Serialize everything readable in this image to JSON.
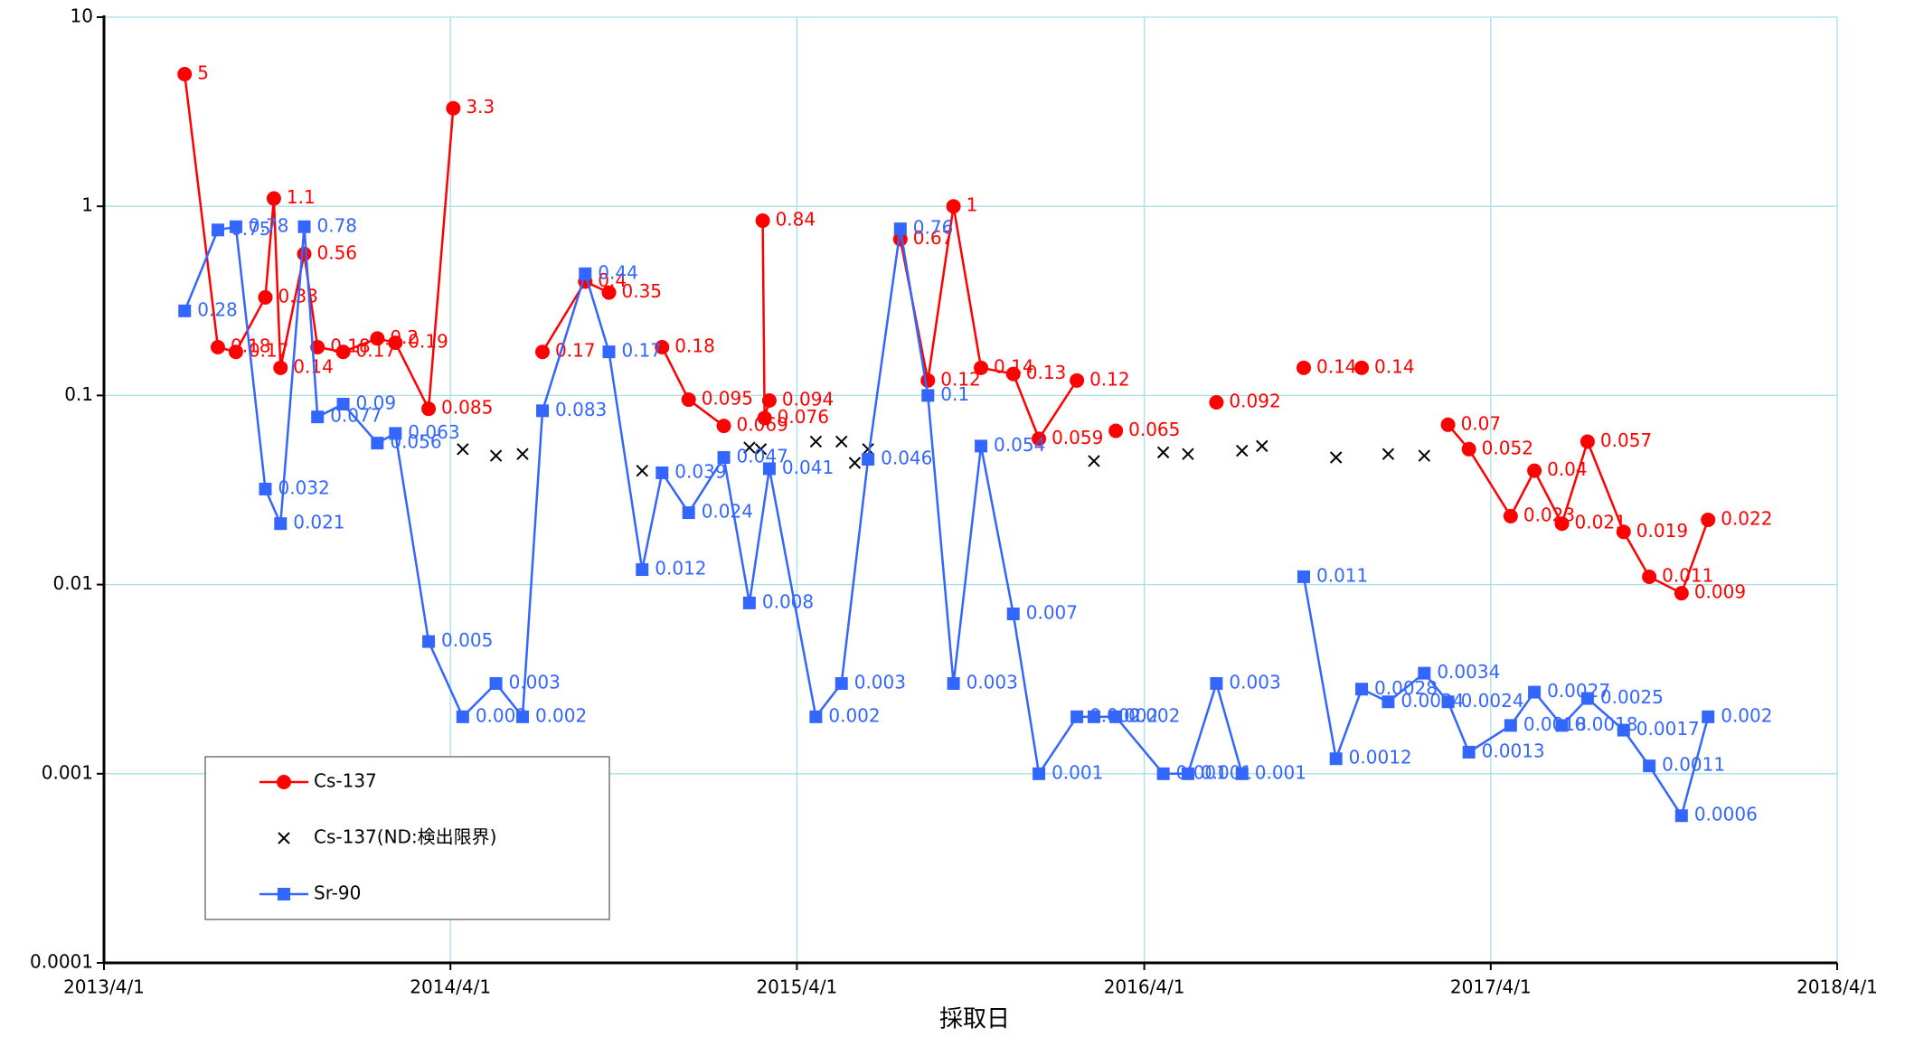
{
  "chart_data": {
    "type": "line",
    "x_label": "採取日",
    "xlim": [
      "2013/4/1",
      "2018/4/1"
    ],
    "xticks": [
      "2013/4/1",
      "2014/4/1",
      "2015/4/1",
      "2016/4/1",
      "2017/4/1",
      "2018/4/1"
    ],
    "ylim": [
      0.0001,
      10
    ],
    "yticks": [
      0.0001,
      0.001,
      0.01,
      0.1,
      1,
      10
    ],
    "log_y": true,
    "grid": true,
    "legend": "lower left",
    "series": [
      {
        "name": "Cs-137",
        "color": "#ff0000",
        "marker": "circle",
        "line": true,
        "x": [
          "2013/6/25",
          "2013/7/30",
          "2013/8/18",
          "2013/9/18",
          "2013/9/27",
          "2013/10/4",
          "2013/10/29",
          "2013/11/12",
          "2013/12/9",
          "2014/1/14",
          "2014/2/2",
          "2014/3/9",
          "2014/4/4",
          "2014/4/14",
          "2014/7/7",
          "2014/8/21",
          "2014/9/15",
          "2014/10/20",
          "2014/11/10",
          "2014/12/8",
          "2015/1/14",
          "2015/2/10",
          "2015/2/24",
          "2015/2/26",
          "2015/3/3",
          "2015/4/21",
          "2015/7/19",
          "2015/8/17",
          "2015/9/13",
          "2015/10/12",
          "2015/11/15",
          "2015/12/12",
          "2016/1/21",
          "2016/2/8",
          "2016/3/2",
          "2016/4/21",
          "2016/6/16",
          "2016/7/13",
          "2016/9/16",
          "2016/10/20",
          "2016/11/16",
          "2016/12/14",
          "2017/2/15",
          "2017/3/9",
          "2017/4/22",
          "2017/5/17",
          "2017/6/15",
          "2017/7/12",
          "2017/8/19",
          "2017/9/15",
          "2017/10/19",
          "2017/11/16"
        ],
        "values": [
          5,
          0.18,
          0.17,
          0.33,
          1.1,
          0.14,
          0.56,
          0.18,
          0.17,
          0.2,
          0.19,
          0.085,
          3.3,
          null,
          0.17,
          0.4,
          0.35,
          null,
          0.18,
          0.095,
          0.069,
          null,
          0.84,
          0.076,
          0.094,
          null,
          0.67,
          0.12,
          1,
          0.14,
          0.13,
          0.059,
          0.12,
          null,
          0.065,
          null,
          0.092,
          null,
          0.14,
          null,
          0.14,
          null,
          0.07,
          0.052,
          0.023,
          0.04,
          0.021,
          0.057,
          0.019,
          0.011,
          0.009,
          0.022
        ]
      },
      {
        "name": "Cs-137(ND:検出限界)",
        "color": "#000000",
        "marker": "x",
        "line": false,
        "x": [
          "2014/4/14",
          "2014/5/19",
          "2014/6/16",
          "2014/10/20",
          "2015/2/10",
          "2015/2/22",
          "2015/4/21",
          "2015/5/18",
          "2015/6/1",
          "2015/6/15",
          "2016/2/8",
          "2016/4/21",
          "2016/5/17",
          "2016/7/13",
          "2016/8/3",
          "2016/10/20",
          "2016/12/14",
          "2017/1/21"
        ],
        "values": [
          0.052,
          0.048,
          0.049,
          0.04,
          0.053,
          0.052,
          0.057,
          0.057,
          0.044,
          0.052,
          0.045,
          0.05,
          0.049,
          0.051,
          0.054,
          0.047,
          0.049,
          0.048
        ]
      },
      {
        "name": "Sr-90",
        "color": "#3366ff",
        "marker": "square",
        "line": true,
        "x": [
          "2013/6/25",
          "2013/7/30",
          "2013/8/18",
          "2013/9/18",
          "2013/10/4",
          "2013/10/29",
          "2013/11/12",
          "2013/12/9",
          "2014/1/14",
          "2014/2/2",
          "2014/3/9",
          "2014/4/14",
          "2014/5/19",
          "2014/6/16",
          "2014/7/7",
          "2014/8/21",
          "2014/9/15",
          "2014/10/20",
          "2014/11/10",
          "2014/12/8",
          "2015/1/14",
          "2015/2/10",
          "2015/3/3",
          "2015/4/21",
          "2015/5/18",
          "2015/6/15",
          "2015/7/19",
          "2015/8/17",
          "2015/9/13",
          "2015/10/12",
          "2015/11/15",
          "2015/12/12",
          "2016/1/21",
          "2016/2/8",
          "2016/3/2",
          "2016/4/21",
          "2016/5/17",
          "2016/6/16",
          "2016/7/13",
          "2016/8/3",
          "2016/9/16",
          "2016/10/20",
          "2016/11/16",
          "2016/12/14",
          "2017/1/21",
          "2017/2/15",
          "2017/3/9",
          "2017/4/22",
          "2017/5/17",
          "2017/6/15",
          "2017/7/12",
          "2017/8/19",
          "2017/9/15",
          "2017/10/19",
          "2017/11/16"
        ],
        "values": [
          0.28,
          0.75,
          0.78,
          0.032,
          0.021,
          0.78,
          0.077,
          0.09,
          0.056,
          0.063,
          0.005,
          0.002,
          0.003,
          0.002,
          0.083,
          0.44,
          0.17,
          0.012,
          0.039,
          0.024,
          0.047,
          0.008,
          0.041,
          0.002,
          0.003,
          0.046,
          0.76,
          0.1,
          0.003,
          0.054,
          0.007,
          0.001,
          0.002,
          0.002,
          0.002,
          0.001,
          0.001,
          0.003,
          0.001,
          null,
          0.011,
          0.0012,
          0.0028,
          0.0024,
          0.0034,
          0.0024,
          0.0013,
          0.0018,
          0.0027,
          0.0018,
          0.0025,
          0.0017,
          0.0011,
          0.0006,
          0.002
        ]
      }
    ]
  }
}
